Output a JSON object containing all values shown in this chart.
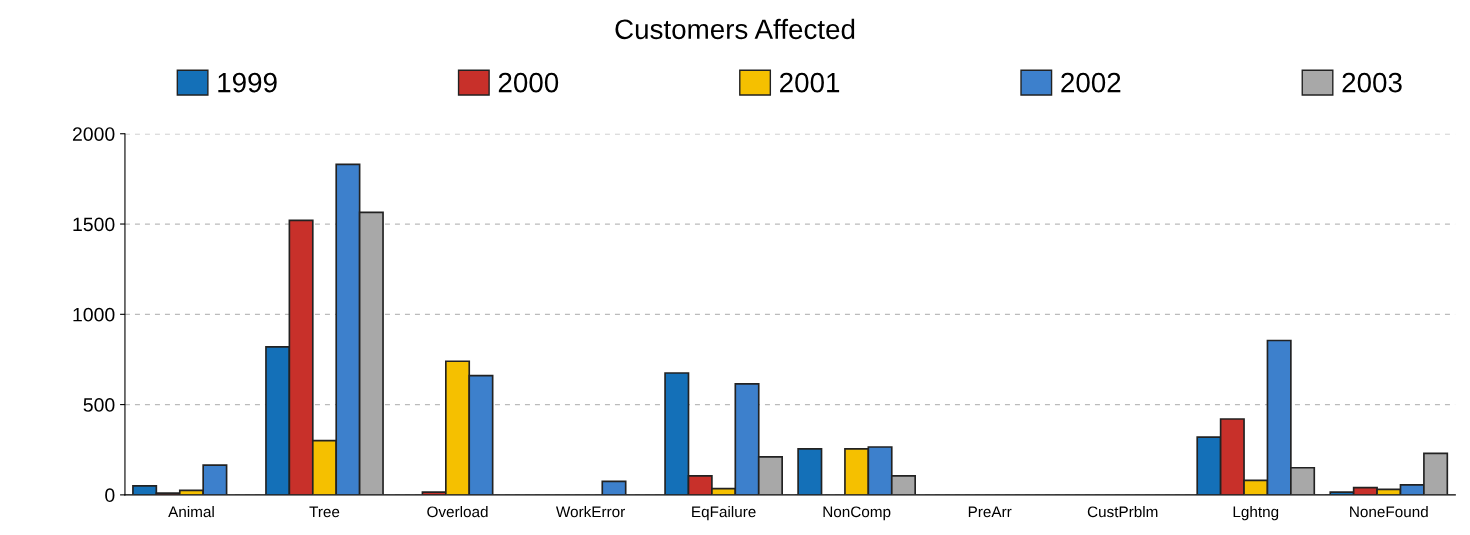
{
  "chart_data": {
    "type": "bar",
    "title": "Customers Affected",
    "categories": [
      "Animal",
      "Tree",
      "Overload",
      "WorkError",
      "EqFailure",
      "NonComp",
      "PreArr",
      "CustPrblm",
      "Lghtng",
      "NoneFound"
    ],
    "series": [
      {
        "name": "1999",
        "color": "#1470b8",
        "values": [
          50,
          820,
          0,
          0,
          675,
          255,
          0,
          0,
          320,
          15
        ]
      },
      {
        "name": "2000",
        "color": "#c8302a",
        "values": [
          10,
          1520,
          15,
          0,
          105,
          0,
          0,
          0,
          420,
          40
        ]
      },
      {
        "name": "2001",
        "color": "#f5c000",
        "values": [
          25,
          300,
          740,
          0,
          35,
          255,
          0,
          0,
          80,
          30
        ]
      },
      {
        "name": "2002",
        "color": "#3d80cc",
        "values": [
          165,
          1830,
          660,
          75,
          615,
          265,
          0,
          0,
          855,
          55
        ]
      },
      {
        "name": "2003",
        "color": "#a8a8a8",
        "values": [
          null,
          1565,
          null,
          0,
          210,
          105,
          0,
          0,
          150,
          230
        ]
      }
    ],
    "ylim": [
      0,
      2000
    ],
    "yticks": [
      0,
      500,
      1000,
      1500,
      2000
    ],
    "grid": "y",
    "legend": "top"
  }
}
